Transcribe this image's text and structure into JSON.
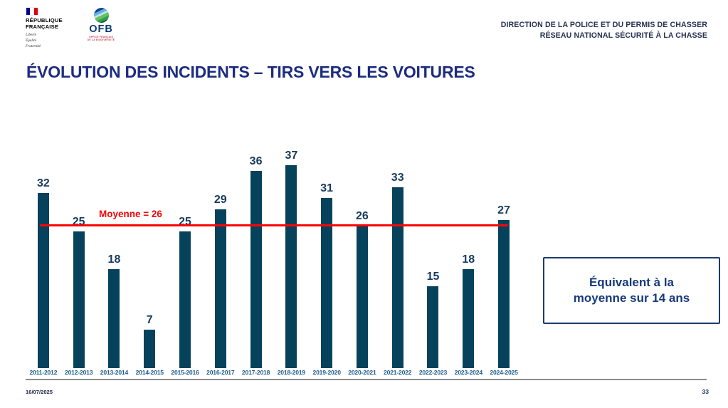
{
  "branding": {
    "republique": {
      "name_line1": "RÉPUBLIQUE",
      "name_line2": "FRANÇAISE",
      "motto": [
        "Liberté",
        "Égalité",
        "Fraternité"
      ]
    },
    "ofb": {
      "acronym": "OFB",
      "subtitle_line1": "OFFICE FRANÇAIS",
      "subtitle_line2": "DE LA BIODIVERSITÉ"
    }
  },
  "header": {
    "line1": "DIRECTION DE LA POLICE ET DU PERMIS DE CHASSER",
    "line2": "RÉSEAU NATIONAL SÉCURITÉ À LA CHASSE"
  },
  "title": "ÉVOLUTION DES INCIDENTS – TIRS VERS LES VOITURES",
  "chart_data": {
    "type": "bar",
    "title": "Évolution des incidents – tirs vers les voitures",
    "categories": [
      "2011-2012",
      "2012-2013",
      "2013-2014",
      "2014-2015",
      "2015-2016",
      "2016-2017",
      "2017-2018",
      "2018-2019",
      "2019-2020",
      "2020-2021",
      "2021-2022",
      "2022-2023",
      "2023-2024",
      "2024-2025"
    ],
    "values": [
      32,
      25,
      18,
      7,
      25,
      29,
      36,
      37,
      31,
      26,
      33,
      15,
      18,
      27
    ],
    "average_line": {
      "label": "Moyenne = 26",
      "value": 26,
      "color": "#fa0505"
    },
    "bar_color": "#07425d",
    "value_label_color": "#173a5f",
    "category_label_color": "#1c5c8c",
    "ylim": [
      0,
      40
    ],
    "grid": false,
    "legend": false
  },
  "callout": {
    "text": "Équivalent à la moyenne sur 14 ans"
  },
  "footer": {
    "date": "16/07/2025",
    "page": "33"
  }
}
